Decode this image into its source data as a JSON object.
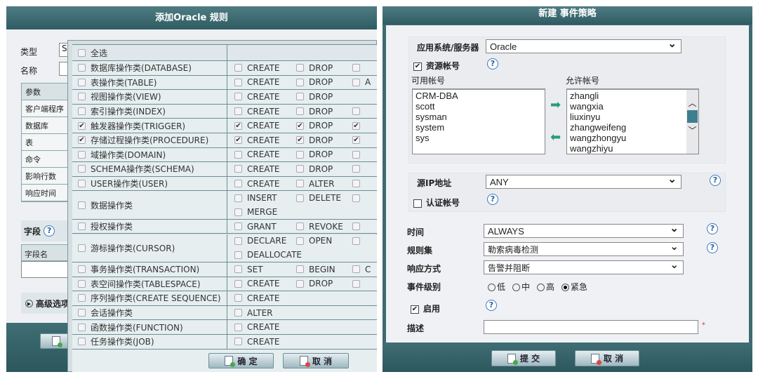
{
  "left_dialog": {
    "title": "添加Oracle 规则",
    "type_label": "类型",
    "type_value": "S",
    "name_label": "名称",
    "params_header": "参数",
    "params": [
      "客户端程序",
      "数据库",
      "表",
      "命令",
      "影响行数",
      "响应时间"
    ],
    "field_label": "字段",
    "field_name_header": "字段名",
    "advanced_label": "高级选项",
    "popup": {
      "select_all": "全选",
      "rows": [
        {
          "label": "数据库操作类(DATABASE)",
          "checked": false,
          "ops": [
            [
              "CREATE",
              false
            ],
            [
              "DROP",
              false
            ],
            [
              "",
              false
            ]
          ]
        },
        {
          "label": "表操作类(TABLE)",
          "checked": false,
          "ops": [
            [
              "CREATE",
              false
            ],
            [
              "DROP",
              false
            ],
            [
              "A",
              false
            ]
          ]
        },
        {
          "label": "视图操作类(VIEW)",
          "checked": false,
          "ops": [
            [
              "CREATE",
              false
            ],
            [
              "DROP",
              false
            ]
          ]
        },
        {
          "label": "索引操作类(INDEX)",
          "checked": false,
          "ops": [
            [
              "CREATE",
              false
            ],
            [
              "DROP",
              false
            ],
            [
              "",
              false
            ]
          ]
        },
        {
          "label": "触发器操作类(TRIGGER)",
          "checked": true,
          "ops": [
            [
              "CREATE",
              true
            ],
            [
              "DROP",
              true
            ],
            [
              "",
              true
            ]
          ]
        },
        {
          "label": "存储过程操作类(PROCEDURE)",
          "checked": true,
          "ops": [
            [
              "CREATE",
              true
            ],
            [
              "DROP",
              true
            ],
            [
              "",
              true
            ]
          ]
        },
        {
          "label": "域操作类(DOMAIN)",
          "checked": false,
          "ops": [
            [
              "CREATE",
              false
            ],
            [
              "DROP",
              false
            ],
            [
              "",
              false
            ]
          ]
        },
        {
          "label": "SCHEMA操作类(SCHEMA)",
          "checked": false,
          "ops": [
            [
              "CREATE",
              false
            ],
            [
              "DROP",
              false
            ],
            [
              "",
              false
            ]
          ]
        },
        {
          "label": "USER操作类(USER)",
          "checked": false,
          "ops": [
            [
              "CREATE",
              false
            ],
            [
              "ALTER",
              false
            ],
            [
              "",
              false
            ]
          ]
        },
        {
          "label": "数据操作类",
          "checked": false,
          "tall": true,
          "ops": [
            [
              "INSERT",
              false
            ],
            [
              "DELETE",
              false
            ],
            [
              "",
              false
            ],
            [
              "MERGE",
              false
            ]
          ]
        },
        {
          "label": "授权操作类",
          "checked": false,
          "ops": [
            [
              "GRANT",
              false
            ],
            [
              "REVOKE",
              false
            ],
            [
              "",
              false
            ]
          ]
        },
        {
          "label": "游标操作类(CURSOR)",
          "checked": false,
          "tall": true,
          "ops": [
            [
              "DECLARE",
              false
            ],
            [
              "OPEN",
              false
            ],
            [
              "",
              false
            ],
            [
              "DEALLOCATE",
              false
            ]
          ]
        },
        {
          "label": "事务操作类(TRANSACTION)",
          "checked": false,
          "ops": [
            [
              "SET",
              false
            ],
            [
              "BEGIN",
              false
            ],
            [
              "C",
              false
            ]
          ]
        },
        {
          "label": "表空间操作类(TABLESPACE)",
          "checked": false,
          "ops": [
            [
              "CREATE",
              false
            ],
            [
              "DROP",
              false
            ],
            [
              "",
              false
            ]
          ]
        },
        {
          "label": "序列操作类(CREATE SEQUENCE)",
          "checked": false,
          "ops": [
            [
              "CREATE",
              false
            ]
          ]
        },
        {
          "label": "会话操作类",
          "checked": false,
          "ops": [
            [
              "ALTER",
              false
            ]
          ]
        },
        {
          "label": "函数操作类(FUNCTION)",
          "checked": false,
          "ops": [
            [
              "CREATE",
              false
            ]
          ]
        },
        {
          "label": "任务操作类(JOB)",
          "checked": false,
          "ops": [
            [
              "CREATE",
              false
            ]
          ]
        }
      ],
      "ok_label": "确 定",
      "cancel_label": "取 消"
    }
  },
  "right_dialog": {
    "title": "新建 事件策略",
    "app_server_label": "应用系统/服务器",
    "app_server_value": "Oracle",
    "resource_account_label": "资源帐号",
    "resource_account_checked": true,
    "available_label": "可用帐号",
    "available": [
      "CRM-DBA",
      "scott",
      "sysman",
      "system",
      "sys"
    ],
    "allowed_label": "允许帐号",
    "allowed": [
      "zhangli",
      "wangxia",
      "liuxinyu",
      "zhangweifeng",
      "wangzhongyu",
      "wangzhiyu"
    ],
    "source_ip_label": "源IP地址",
    "source_ip_value": "ANY",
    "auth_account_label": "认证帐号",
    "auth_account_checked": false,
    "time_label": "时间",
    "time_value": "ALWAYS",
    "ruleset_label": "规则集",
    "ruleset_value": "勒索病毒检测",
    "response_label": "响应方式",
    "response_value": "告警并阻断",
    "level_label": "事件级别",
    "levels": [
      "低",
      "中",
      "高",
      "紧急"
    ],
    "level_selected": "紧急",
    "enable_label": "启用",
    "enable_checked": true,
    "desc_label": "描述",
    "required_mark": "*",
    "submit_label": "提 交",
    "cancel_label": "取 消"
  },
  "colors": {
    "title_bar": "#3e6a70",
    "panel_bg": "#eef0f3",
    "popup_bg": "#e6eef0"
  }
}
